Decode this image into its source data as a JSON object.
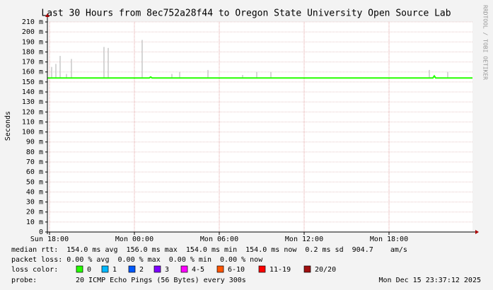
{
  "chart_data": {
    "type": "smokeping",
    "title": "Last 30 Hours from 8ec752a28f44 to Oregon State University Open Source Lab",
    "y_label": "Seconds",
    "side_label": "RRDTOOL / TOBI OETIKER",
    "xlim": [
      -0.15,
      29.9
    ],
    "xticks": [
      {
        "value": 0,
        "label": "Sun 18:00"
      },
      {
        "value": 6,
        "label": "Mon 00:00"
      },
      {
        "value": 12,
        "label": "Mon 06:00"
      },
      {
        "value": 18,
        "label": "Mon 12:00"
      },
      {
        "value": 24,
        "label": "Mon 18:00"
      }
    ],
    "ylim": [
      0,
      0.21
    ],
    "yticks": [
      0,
      {
        "value": 0.01,
        "label": "10 m"
      },
      {
        "value": 0.02,
        "label": "20 m"
      },
      {
        "value": 0.03,
        "label": "30 m"
      },
      {
        "value": 0.04,
        "label": "40 m"
      },
      {
        "value": 0.05,
        "label": "50 m"
      },
      {
        "value": 0.06,
        "label": "60 m"
      },
      {
        "value": 0.07,
        "label": "70 m"
      },
      {
        "value": 0.08,
        "label": "80 m"
      },
      {
        "value": 0.09,
        "label": "90 m"
      },
      {
        "value": 0.1,
        "label": "100 m"
      },
      {
        "value": 0.11,
        "label": "110 m"
      },
      {
        "value": 0.12,
        "label": "120 m"
      },
      {
        "value": 0.13,
        "label": "130 m"
      },
      {
        "value": 0.14,
        "label": "140 m"
      },
      {
        "value": 0.15,
        "label": "150 m"
      },
      {
        "value": 0.16,
        "label": "160 m"
      },
      {
        "value": 0.17,
        "label": "170 m"
      },
      {
        "value": 0.18,
        "label": "180 m"
      },
      {
        "value": 0.19,
        "label": "190 m"
      },
      {
        "value": 0.2,
        "label": "200 m"
      },
      {
        "value": 0.21,
        "label": "210 m"
      }
    ],
    "grid": true,
    "series": [
      {
        "name": "smoke",
        "color": "#c8c8c8",
        "x": [
          0.15,
          0.45,
          0.75,
          1.2,
          1.55,
          3.85,
          4.15,
          6.55,
          8.65,
          9.2,
          11.2,
          13.65,
          14.65,
          15.65,
          26.85,
          28.15
        ],
        "values": [
          0.165,
          0.168,
          0.176,
          0.158,
          0.173,
          0.185,
          0.184,
          0.192,
          0.158,
          0.16,
          0.162,
          0.157,
          0.16,
          0.16,
          0.162,
          0.16
        ]
      },
      {
        "name": "median rtt",
        "color": "#26ff00",
        "x": [
          -0.15,
          7.05,
          7.15,
          7.25,
          27.1,
          27.2,
          27.3,
          29.9
        ],
        "values": [
          0.154,
          0.154,
          0.155,
          0.154,
          0.154,
          0.156,
          0.154,
          0.154
        ]
      }
    ],
    "stats": [
      "median rtt:  154.0 ms avg  156.0 ms max  154.0 ms min  154.0 ms now  0.2 ms sd  904.7    am/s",
      "packet loss: 0.00 % avg  0.00 % max  0.00 % min  0.00 % now"
    ],
    "loss_legend": {
      "label": "loss color:",
      "items": [
        {
          "name": "0",
          "color": "#26ff00"
        },
        {
          "name": "1",
          "color": "#00b8ff"
        },
        {
          "name": "2",
          "color": "#0059ff"
        },
        {
          "name": "3",
          "color": "#7e00ff"
        },
        {
          "name": "4-5",
          "color": "#ff00ff"
        },
        {
          "name": "6-10",
          "color": "#ff5500"
        },
        {
          "name": "11-19",
          "color": "#ff0000"
        },
        {
          "name": "20/20",
          "color": "#a01010"
        }
      ]
    },
    "probe_label": "probe:",
    "probe": "20 ICMP Echo Pings (56 Bytes) every 300s",
    "timestamp": "Mon Dec 15 23:37:12 2025"
  }
}
